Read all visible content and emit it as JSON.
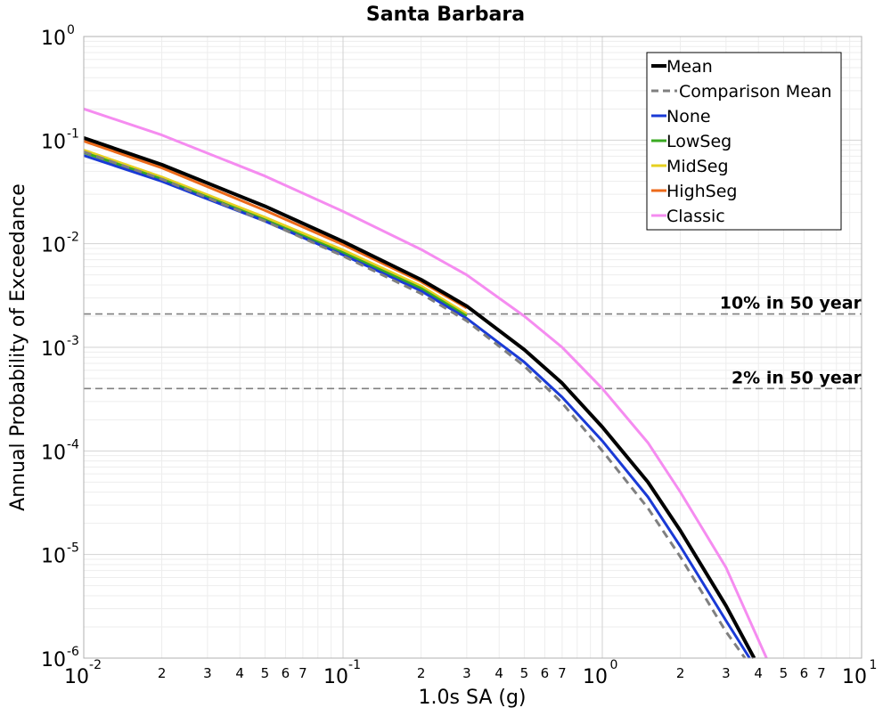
{
  "chart_data": {
    "type": "line",
    "title": "Santa Barbara",
    "xlabel": "1.0s SA (g)",
    "ylabel": "Annual Probability of Exceedance",
    "x_scale": "log",
    "y_scale": "log",
    "xlim": [
      0.01,
      10
    ],
    "ylim": [
      1e-06,
      1
    ],
    "grid": true,
    "legend_placement": "top-right",
    "x_major_ticks": [
      {
        "value": 0.01,
        "base": "10",
        "exp": "-2"
      },
      {
        "value": 0.1,
        "base": "10",
        "exp": "-1"
      },
      {
        "value": 1,
        "base": "10",
        "exp": "0"
      },
      {
        "value": 10,
        "base": "10",
        "exp": "1"
      }
    ],
    "x_minor_labels": [
      "2",
      "3",
      "4",
      "5",
      "6",
      "7"
    ],
    "y_major_ticks": [
      {
        "value": 1,
        "base": "10",
        "exp": "0"
      },
      {
        "value": 0.1,
        "base": "10",
        "exp": "-1"
      },
      {
        "value": 0.01,
        "base": "10",
        "exp": "-2"
      },
      {
        "value": 0.001,
        "base": "10",
        "exp": "-3"
      },
      {
        "value": 0.0001,
        "base": "10",
        "exp": "-4"
      },
      {
        "value": 1e-05,
        "base": "10",
        "exp": "-5"
      },
      {
        "value": 1e-06,
        "base": "10",
        "exp": "-6"
      }
    ],
    "reference_lines": [
      {
        "label": "10% in 50 year",
        "y": 0.0021
      },
      {
        "label": "2% in 50 year",
        "y": 0.0004
      }
    ],
    "series": [
      {
        "name": "Mean",
        "color": "#000000",
        "dash": "solid",
        "points": [
          [
            0.01,
            0.105
          ],
          [
            0.02,
            0.058
          ],
          [
            0.05,
            0.023
          ],
          [
            0.1,
            0.0105
          ],
          [
            0.2,
            0.0045
          ],
          [
            0.3,
            0.0025
          ],
          [
            0.5,
            0.00095
          ],
          [
            0.7,
            0.00045
          ],
          [
            1.0,
            0.00017
          ],
          [
            1.5,
            5e-05
          ],
          [
            2.0,
            1.7e-05
          ],
          [
            3.0,
            3.2e-06
          ],
          [
            3.85,
            1e-06
          ]
        ]
      },
      {
        "name": "Comparison Mean",
        "color": "#808080",
        "dash": "dashed",
        "points": [
          [
            0.01,
            0.077
          ],
          [
            0.02,
            0.042
          ],
          [
            0.05,
            0.0165
          ],
          [
            0.1,
            0.0076
          ],
          [
            0.2,
            0.0033
          ],
          [
            0.3,
            0.0018
          ],
          [
            0.5,
            0.00066
          ],
          [
            0.7,
            0.00029
          ],
          [
            1.0,
            0.0001
          ],
          [
            1.5,
            2.8e-05
          ],
          [
            2.0,
            9.5e-06
          ],
          [
            3.0,
            1.8e-06
          ],
          [
            3.55,
            1e-06
          ]
        ]
      },
      {
        "name": "None",
        "color": "#1a3ad6",
        "dash": "solid",
        "points": [
          [
            0.01,
            0.071
          ],
          [
            0.02,
            0.04
          ],
          [
            0.05,
            0.0165
          ],
          [
            0.1,
            0.0078
          ],
          [
            0.2,
            0.0035
          ],
          [
            0.3,
            0.0019
          ],
          [
            0.5,
            0.00072
          ],
          [
            0.7,
            0.00033
          ],
          [
            1.0,
            0.000125
          ],
          [
            1.5,
            3.6e-05
          ],
          [
            2.0,
            1.2e-05
          ],
          [
            3.0,
            2.3e-06
          ],
          [
            3.7,
            1e-06
          ]
        ]
      },
      {
        "name": "LowSeg",
        "color": "#3aaa22",
        "dash": "solid",
        "points": [
          [
            0.01,
            0.076
          ],
          [
            0.02,
            0.042
          ],
          [
            0.05,
            0.017
          ],
          [
            0.1,
            0.0082
          ],
          [
            0.2,
            0.0037
          ],
          [
            0.3,
            0.002
          ]
        ]
      },
      {
        "name": "MidSeg",
        "color": "#e6d020",
        "dash": "solid",
        "points": [
          [
            0.01,
            0.08
          ],
          [
            0.02,
            0.044
          ],
          [
            0.05,
            0.018
          ],
          [
            0.1,
            0.0087
          ],
          [
            0.2,
            0.0039
          ],
          [
            0.3,
            0.0021
          ]
        ]
      },
      {
        "name": "HighSeg",
        "color": "#ec6a1a",
        "dash": "solid",
        "points": [
          [
            0.01,
            0.098
          ],
          [
            0.02,
            0.054
          ],
          [
            0.05,
            0.021
          ],
          [
            0.1,
            0.0098
          ],
          [
            0.2,
            0.0043
          ],
          [
            0.3,
            0.0024
          ]
        ]
      },
      {
        "name": "Classic",
        "color": "#f58cf0",
        "dash": "solid",
        "points": [
          [
            0.01,
            0.2
          ],
          [
            0.02,
            0.112
          ],
          [
            0.05,
            0.045
          ],
          [
            0.1,
            0.0205
          ],
          [
            0.2,
            0.0088
          ],
          [
            0.3,
            0.005
          ],
          [
            0.5,
            0.002
          ],
          [
            0.7,
            0.001
          ],
          [
            1.0,
            0.0004
          ],
          [
            1.5,
            0.00012
          ],
          [
            2.0,
            4e-05
          ],
          [
            3.0,
            7.5e-06
          ],
          [
            4.3,
            1e-06
          ]
        ]
      }
    ]
  }
}
